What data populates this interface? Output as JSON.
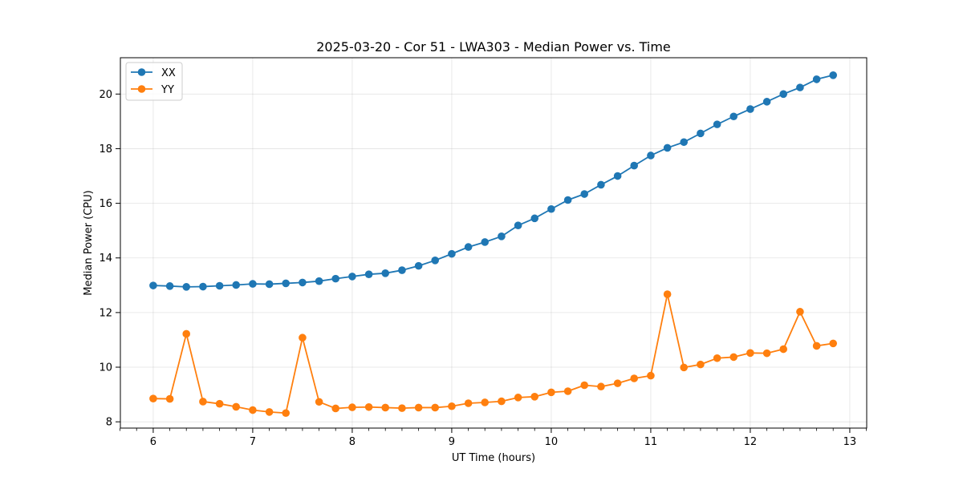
{
  "chart_data": {
    "type": "line",
    "title": "2025-03-20 - Cor 51 - LWA303 - Median Power vs. Time",
    "xlabel": "UT Time (hours)",
    "ylabel": "Median Power (CPU)",
    "xlim": [
      5.67,
      13.17
    ],
    "ylim": [
      7.77,
      21.33
    ],
    "xticks": [
      6,
      7,
      8,
      9,
      10,
      11,
      12,
      13
    ],
    "xticks_minor": [
      5.667,
      5.833,
      6.167,
      6.333,
      6.5,
      6.667,
      6.833,
      7.167,
      7.333,
      7.5,
      7.667,
      7.833,
      8.167,
      8.333,
      8.5,
      8.667,
      8.833,
      9.167,
      9.333,
      9.5,
      9.667,
      9.833,
      10.167,
      10.333,
      10.5,
      10.667,
      10.833,
      11.167,
      11.333,
      11.5,
      11.667,
      11.833,
      12.167,
      12.333,
      12.5,
      12.667,
      12.833,
      13.167
    ],
    "yticks": [
      8,
      10,
      12,
      14,
      16,
      18,
      20
    ],
    "grid": true,
    "legend_position": "top-left",
    "x": [
      6.0,
      6.167,
      6.333,
      6.5,
      6.667,
      6.833,
      7.0,
      7.167,
      7.333,
      7.5,
      7.667,
      7.833,
      8.0,
      8.167,
      8.333,
      8.5,
      8.667,
      8.833,
      9.0,
      9.167,
      9.333,
      9.5,
      9.667,
      9.833,
      10.0,
      10.167,
      10.333,
      10.5,
      10.667,
      10.833,
      11.0,
      11.167,
      11.333,
      11.5,
      11.667,
      11.833,
      12.0,
      12.167,
      12.333,
      12.5,
      12.667,
      12.833
    ],
    "series": [
      {
        "name": "XX",
        "color": "#1f77b4",
        "values": [
          12.99,
          12.97,
          12.94,
          12.95,
          12.98,
          13.01,
          13.05,
          13.04,
          13.07,
          13.1,
          13.15,
          13.24,
          13.32,
          13.4,
          13.44,
          13.55,
          13.71,
          13.91,
          14.15,
          14.4,
          14.58,
          14.79,
          15.19,
          15.45,
          15.79,
          16.12,
          16.34,
          16.68,
          17.0,
          17.38,
          17.75,
          18.03,
          18.24,
          18.56,
          18.89,
          19.18,
          19.45,
          19.72,
          20.0,
          20.24,
          20.54,
          20.69
        ]
      },
      {
        "name": "YY",
        "color": "#ff7f0e",
        "values": [
          8.85,
          8.84,
          11.22,
          8.74,
          8.66,
          8.55,
          8.43,
          8.36,
          8.32,
          11.08,
          8.73,
          8.49,
          8.53,
          8.54,
          8.52,
          8.5,
          8.52,
          8.52,
          8.57,
          8.68,
          8.71,
          8.75,
          8.89,
          8.92,
          9.08,
          9.12,
          9.34,
          9.29,
          9.41,
          9.59,
          9.69,
          12.67,
          9.99,
          10.1,
          10.33,
          10.37,
          10.52,
          10.51,
          10.66,
          12.03,
          10.78,
          10.87
        ]
      }
    ]
  }
}
